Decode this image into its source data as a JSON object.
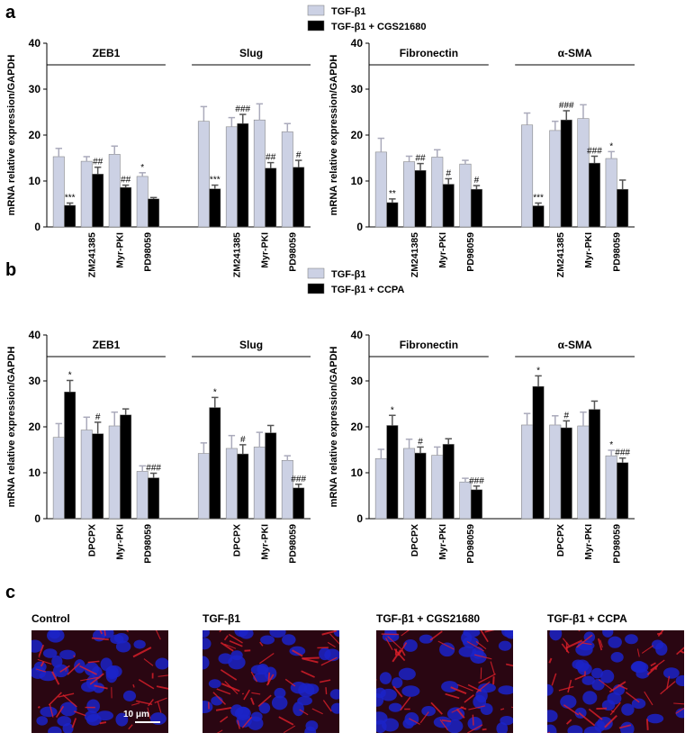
{
  "panel_labels": [
    "a",
    "b",
    "c"
  ],
  "chart_data": [
    {
      "type": "bar",
      "ylabel": "mRNA relative expression/GAPDH",
      "ylim": [
        0,
        40
      ],
      "yticks": [
        0,
        10,
        20,
        30,
        40
      ],
      "legend": true,
      "groups": [
        "ZEB1",
        "Slug"
      ],
      "categories": [
        null,
        "ZM241385",
        "Myr-PKI",
        "PD98059",
        null,
        "ZM241385",
        "Myr-PKI",
        "PD98059"
      ],
      "series": [
        {
          "name": "TGF-β1",
          "color": "#ccd1e4",
          "values": [
            15.3,
            14.3,
            15.8,
            11.0,
            23.0,
            21.8,
            23.3,
            20.7
          ],
          "errors": [
            1.8,
            1.0,
            1.8,
            0.8,
            3.2,
            2.0,
            3.5,
            1.8
          ],
          "annotations": [
            null,
            null,
            null,
            "*",
            null,
            null,
            null,
            null
          ]
        },
        {
          "name": "TGF-β1 + CGS21680",
          "color": "#000000",
          "values": [
            4.7,
            11.5,
            8.6,
            6.1,
            8.3,
            22.5,
            12.8,
            13.0
          ],
          "errors": [
            0.5,
            1.5,
            0.5,
            0.3,
            0.8,
            2.0,
            1.2,
            1.5
          ],
          "annotations": [
            "***",
            "##",
            "##",
            null,
            "***",
            "###",
            "##",
            "#"
          ]
        }
      ]
    },
    {
      "type": "bar",
      "ylabel": "mRNA relative expression/GAPDH",
      "ylim": [
        0,
        40
      ],
      "yticks": [
        0,
        10,
        20,
        30,
        40
      ],
      "legend": false,
      "groups": [
        "Fibronectin",
        "α-SMA"
      ],
      "categories": [
        null,
        "ZM241385",
        "Myr-PKI",
        "PD98059",
        null,
        "ZM241385",
        "Myr-PKI",
        "PD98059"
      ],
      "series": [
        {
          "color": "#ccd1e4",
          "values": [
            16.3,
            14.2,
            15.2,
            13.7,
            22.2,
            21.0,
            23.6,
            14.9
          ],
          "errors": [
            3.0,
            1.2,
            1.6,
            0.8,
            2.6,
            2.0,
            3.0,
            1.5
          ],
          "annotations": [
            null,
            null,
            null,
            null,
            null,
            null,
            null,
            "*"
          ]
        },
        {
          "color": "#000000",
          "values": [
            5.3,
            12.3,
            9.3,
            8.2,
            4.6,
            23.3,
            13.9,
            8.2
          ],
          "errors": [
            0.8,
            1.5,
            1.2,
            0.8,
            0.6,
            2.0,
            1.5,
            2.0
          ],
          "annotations": [
            "**",
            "##",
            "#",
            "#",
            "***",
            "###",
            "###",
            null
          ]
        }
      ]
    },
    {
      "type": "bar",
      "ylabel": "mRNA relative expression/GAPDH",
      "ylim": [
        0,
        40
      ],
      "yticks": [
        0,
        10,
        20,
        30,
        40
      ],
      "legend": true,
      "groups": [
        "ZEB1",
        "Slug"
      ],
      "categories": [
        null,
        "DPCPX",
        "Myr-PKI",
        "PD98059",
        null,
        "DPCPX",
        "Myr-PKI",
        "PD98059"
      ],
      "series": [
        {
          "name": "TGF-β1",
          "color": "#ccd1e4",
          "values": [
            17.7,
            19.3,
            20.2,
            10.3,
            14.2,
            15.3,
            15.6,
            12.7
          ],
          "errors": [
            3.0,
            2.8,
            3.0,
            1.2,
            2.3,
            2.8,
            3.2,
            1.0
          ],
          "annotations": [
            null,
            null,
            null,
            null,
            null,
            null,
            null,
            null
          ]
        },
        {
          "name": "TGF-β1 + CCPA",
          "color": "#000000",
          "values": [
            27.6,
            18.5,
            22.6,
            8.9,
            24.2,
            14.1,
            18.7,
            6.7
          ],
          "errors": [
            2.5,
            2.5,
            1.3,
            1.0,
            2.2,
            2.0,
            1.6,
            0.8
          ],
          "annotations": [
            "*",
            "#",
            null,
            "###",
            "*",
            "#",
            null,
            "###"
          ]
        }
      ]
    },
    {
      "type": "bar",
      "ylabel": "mRNA relative expression/GAPDH",
      "ylim": [
        0,
        40
      ],
      "yticks": [
        0,
        10,
        20,
        30,
        40
      ],
      "legend": false,
      "groups": [
        "Fibronectin",
        "α-SMA"
      ],
      "categories": [
        null,
        "DPCPX",
        "Myr-PKI",
        "PD98059",
        null,
        "DPCPX",
        "Myr-PKI",
        "PD98059"
      ],
      "series": [
        {
          "color": "#ccd1e4",
          "values": [
            13.1,
            15.3,
            13.8,
            8.0,
            20.4,
            20.4,
            20.2,
            13.7
          ],
          "errors": [
            2.0,
            2.0,
            1.8,
            0.8,
            2.5,
            2.0,
            3.0,
            1.2
          ],
          "annotations": [
            null,
            null,
            null,
            null,
            null,
            null,
            null,
            "*"
          ]
        },
        {
          "color": "#000000",
          "values": [
            20.3,
            14.3,
            16.2,
            6.3,
            28.8,
            19.8,
            23.8,
            12.2
          ],
          "errors": [
            2.2,
            1.3,
            1.2,
            0.8,
            2.3,
            1.5,
            1.8,
            1.0
          ],
          "annotations": [
            "*",
            "#",
            null,
            "###",
            "*",
            "#",
            null,
            "###"
          ]
        }
      ]
    }
  ],
  "images": [
    {
      "title": "Control"
    },
    {
      "title": "TGF-β1"
    },
    {
      "title": "TGF-β1 + CGS21680"
    },
    {
      "title": "TGF-β1 + CCPA"
    }
  ],
  "scale_bar": "10 μm"
}
